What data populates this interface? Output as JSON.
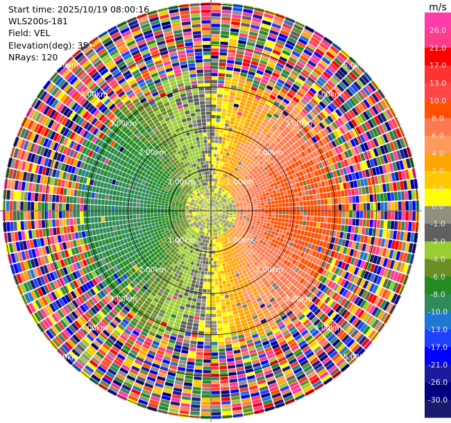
{
  "header": {
    "start_time": "Start time: 2025/10/19 08:00:16",
    "instrument": "WLS200s-181",
    "field": "Field: VEL",
    "elevation": "Elevation(deg): 35.00",
    "nrays": "NRays: 120"
  },
  "chart_data": {
    "type": "ppi",
    "field": "VEL",
    "units": "m/s",
    "elevation_deg": 35.0,
    "n_rays": 120,
    "range_rings_km": [
      1.0,
      2.0,
      3.0,
      4.0,
      5.0
    ],
    "range_labels": [
      "1.00km",
      "2.00km",
      "3.00km",
      "4.00km",
      "5.00km"
    ],
    "max_range_km": 5.1,
    "colorbar": {
      "unit_label": "m/s",
      "ticks": [
        "26.0",
        "21.0",
        "17.0",
        "13.0",
        "10.0",
        "8.0",
        "6.0",
        "4.0",
        "2.0",
        "1.0",
        "0.0",
        "-1.0",
        "-2.0",
        "-4.0",
        "-6.0",
        "-8.0",
        "-10.0",
        "-13.0",
        "-17.0",
        "-21.0",
        "-26.0",
        "-30.0"
      ],
      "colors": [
        "#ff3caa",
        "#ff3c8c",
        "#ff0000",
        "#ff3232",
        "#ff4646",
        "#ff5000",
        "#ff7850",
        "#ff9a5a",
        "#ffa500",
        "#ffc800",
        "#ffff00",
        "#909080",
        "#606060",
        "#9acd32",
        "#6b8e23",
        "#228b22",
        "#2e8b57",
        "#1e78d2",
        "#2040ff",
        "#0000ff",
        "#1a1a9a",
        "#000080",
        "#191970"
      ]
    },
    "velocity_pattern": "approaching (green/blue) on west side, receding (orange/red) on east side; noise (multicolor) beyond ~3 km",
    "clean_range_km": 2.9
  }
}
